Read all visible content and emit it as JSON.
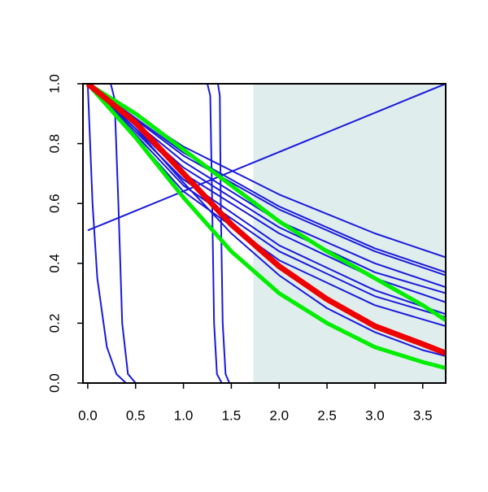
{
  "chart_data": {
    "type": "line",
    "xlim": [
      -0.05,
      3.74
    ],
    "ylim": [
      0,
      1
    ],
    "xticks": [
      {
        "value": 0,
        "label": "0.0"
      },
      {
        "value": 0.5,
        "label": "0.5"
      },
      {
        "value": 1,
        "label": "1.0"
      },
      {
        "value": 1.5,
        "label": "1.5"
      },
      {
        "value": 2,
        "label": "2.0"
      },
      {
        "value": 2.5,
        "label": "2.5"
      },
      {
        "value": 3,
        "label": "3.0"
      },
      {
        "value": 3.5,
        "label": "3.5"
      }
    ],
    "yticks": [
      {
        "value": 0,
        "label": "0.0"
      },
      {
        "value": 0.2,
        "label": "0.2"
      },
      {
        "value": 0.4,
        "label": "0.4"
      },
      {
        "value": 0.6,
        "label": "0.6"
      },
      {
        "value": 0.8,
        "label": "0.8"
      },
      {
        "value": 1,
        "label": "1.0"
      }
    ],
    "shade_from": 1.73,
    "shade_color": "#e0eded",
    "series": [
      {
        "color": "#1a1adb",
        "width": 2,
        "x": [
          0,
          3.74
        ],
        "values": [
          0.51,
          1.0
        ]
      },
      {
        "color": "#1a1adb",
        "width": 2,
        "x": [
          0,
          0.05,
          0.1,
          0.2,
          0.3,
          0.4,
          3.74
        ],
        "values": [
          1,
          0.6,
          0.35,
          0.12,
          0.03,
          0,
          0
        ]
      },
      {
        "color": "#1a1adb",
        "width": 2,
        "x": [
          0,
          0.24,
          0.28,
          0.32,
          0.36,
          0.42,
          0.5,
          3.74
        ],
        "values": [
          1,
          1,
          0.95,
          0.6,
          0.2,
          0.03,
          0,
          0
        ]
      },
      {
        "color": "#1a1adb",
        "width": 2,
        "x": [
          0,
          1.25,
          1.28,
          1.3,
          1.32,
          1.35,
          1.4,
          3.74
        ],
        "values": [
          1,
          1,
          0.96,
          0.6,
          0.2,
          0.03,
          0,
          0
        ]
      },
      {
        "color": "#1a1adb",
        "width": 2,
        "x": [
          0,
          1.36,
          1.38,
          1.39,
          1.41,
          1.44,
          1.48,
          3.74
        ],
        "values": [
          1,
          1,
          0.96,
          0.6,
          0.2,
          0.03,
          0,
          0
        ]
      },
      {
        "color": "#1a1adb",
        "width": 2,
        "x": [
          0,
          1,
          2,
          3,
          3.74
        ],
        "values": [
          1,
          0.79,
          0.63,
          0.5,
          0.42
        ]
      },
      {
        "color": "#1a1adb",
        "width": 2,
        "x": [
          0,
          1,
          2,
          3,
          3.74
        ],
        "values": [
          1,
          0.77,
          0.59,
          0.45,
          0.37
        ]
      },
      {
        "color": "#1a1adb",
        "width": 2,
        "x": [
          0,
          1,
          2,
          3,
          3.74
        ],
        "values": [
          1,
          0.76,
          0.58,
          0.44,
          0.36
        ]
      },
      {
        "color": "#1a1adb",
        "width": 2,
        "x": [
          0,
          1,
          2,
          3,
          3.74
        ],
        "values": [
          1,
          0.74,
          0.54,
          0.4,
          0.32
        ]
      },
      {
        "color": "#1a1adb",
        "width": 2,
        "x": [
          0,
          1,
          2,
          3,
          3.74
        ],
        "values": [
          1,
          0.72,
          0.52,
          0.37,
          0.3
        ]
      },
      {
        "color": "#1a1adb",
        "width": 2,
        "x": [
          0,
          1,
          2,
          3,
          3.74
        ],
        "values": [
          1,
          0.7,
          0.5,
          0.35,
          0.27
        ]
      },
      {
        "color": "#1a1adb",
        "width": 2,
        "x": [
          0,
          1,
          2,
          3,
          3.74
        ],
        "values": [
          1,
          0.68,
          0.46,
          0.31,
          0.23
        ]
      },
      {
        "color": "#1a1adb",
        "width": 2,
        "x": [
          0,
          1,
          2,
          3,
          3.74
        ],
        "values": [
          1,
          0.66,
          0.44,
          0.29,
          0.22
        ]
      },
      {
        "color": "#1a1adb",
        "width": 2,
        "x": [
          0,
          1,
          2,
          3,
          3.74
        ],
        "values": [
          1,
          0.64,
          0.41,
          0.26,
          0.19
        ]
      },
      {
        "color": "#1a1adb",
        "width": 2,
        "x": [
          0,
          0.5,
          1,
          1.5,
          2,
          2.5,
          3,
          3.5,
          3.74
        ],
        "values": [
          1,
          0.85,
          0.67,
          0.5,
          0.36,
          0.25,
          0.17,
          0.11,
          0.09
        ]
      },
      {
        "color": "#00ee00",
        "width": 5,
        "x": [
          0,
          0.5,
          1,
          1.5,
          2,
          2.5,
          3,
          3.5,
          3.74
        ],
        "values": [
          1,
          0.9,
          0.78,
          0.66,
          0.54,
          0.44,
          0.35,
          0.26,
          0.21
        ]
      },
      {
        "color": "#00ee00",
        "width": 5,
        "x": [
          0,
          0.5,
          1,
          1.5,
          2,
          2.5,
          3,
          3.5,
          3.74
        ],
        "values": [
          1,
          0.82,
          0.62,
          0.44,
          0.3,
          0.2,
          0.12,
          0.07,
          0.05
        ]
      },
      {
        "color": "#ee0000",
        "width": 7,
        "x": [
          0,
          0.5,
          1,
          1.5,
          2,
          2.5,
          3,
          3.5,
          3.74
        ],
        "values": [
          1,
          0.87,
          0.7,
          0.53,
          0.39,
          0.28,
          0.19,
          0.13,
          0.1
        ]
      }
    ]
  }
}
